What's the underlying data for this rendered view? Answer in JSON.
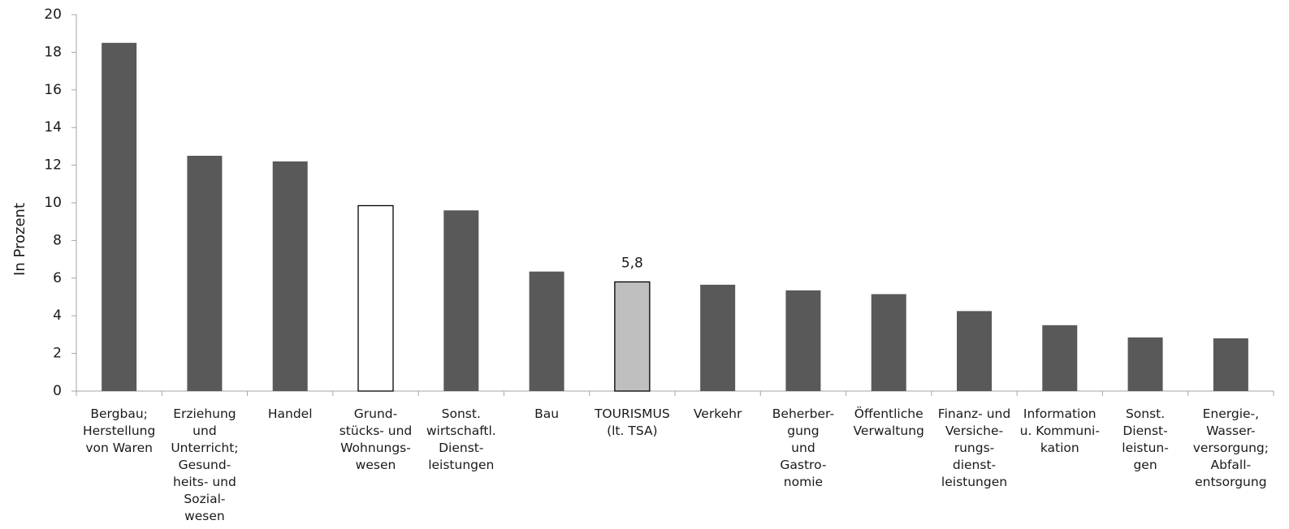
{
  "chart_data": {
    "type": "bar",
    "title": "",
    "xlabel": "",
    "ylabel": "In Prozent",
    "ylim": [
      0,
      20
    ],
    "yticks": [
      0,
      2,
      4,
      6,
      8,
      10,
      12,
      14,
      16,
      18,
      20
    ],
    "grid": false,
    "categories": [
      "Bergbau;\nHerstellung\nvon Waren",
      "Erziehung\nund\nUnterricht;\nGesund-\nheits- und\nSozial-\nwesen",
      "Handel",
      "Grund-\nstücks- und\nWohnungs-\nwesen",
      "Sonst.\nwirtschaftl.\nDienst-\nleistungen",
      "Bau",
      "TOURISMUS\n(lt. TSA)",
      "Verkehr",
      "Beherber-\ngung\nund\nGastro-\nnomie",
      "Öffentliche\nVerwaltung",
      "Finanz- und\nVersiche-\nrungs-\ndienst-\nleistungen",
      "Information\nu. Kommuni-\nkation",
      "Sonst.\nDienst-\nleistun-\ngen",
      "Energie-,\nWasser-\nversorgung;\nAbfall-\nentsorgung"
    ],
    "values": [
      18.5,
      12.5,
      12.2,
      9.85,
      9.6,
      6.35,
      5.8,
      5.65,
      5.35,
      5.15,
      4.25,
      3.5,
      2.85,
      2.8
    ],
    "bar_styles": [
      "dark",
      "dark",
      "dark",
      "white",
      "dark",
      "dark",
      "light",
      "dark",
      "dark",
      "dark",
      "dark",
      "dark",
      "dark",
      "dark"
    ],
    "data_labels": [
      {
        "index": 6,
        "text": "5,8"
      }
    ]
  },
  "colors": {
    "dark": "#595959",
    "light": "#bfbfbf",
    "white": "#ffffff",
    "outline": "#000000",
    "axis": "#a6a6a6"
  }
}
